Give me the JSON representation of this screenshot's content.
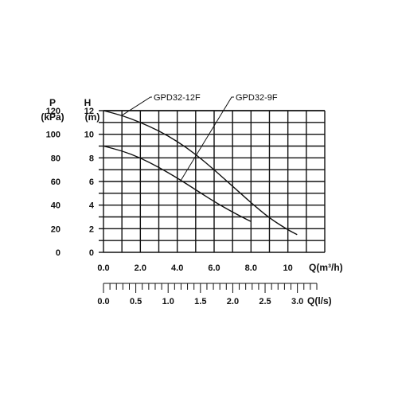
{
  "chart_data": {
    "type": "line",
    "title": "",
    "left_axes": [
      {
        "label_top": "P",
        "label_unit": "(kPa)",
        "ticks": [
          0,
          20,
          40,
          60,
          80,
          100,
          120
        ]
      },
      {
        "label_top": "H",
        "label_unit": "(m)",
        "ticks": [
          0,
          2,
          4,
          6,
          8,
          10,
          12
        ]
      }
    ],
    "xlabel": "Q(m³/h)",
    "x_ticks": [
      "0.0",
      "2.0",
      "4.0",
      "6.0",
      "8.0",
      "10"
    ],
    "xlim": [
      0,
      12
    ],
    "ylim": [
      0,
      12
    ],
    "secondary_x": {
      "label": "Q(l/s)",
      "ticks": [
        "0.0",
        "0.5",
        "1.0",
        "1.5",
        "2.0",
        "2.5",
        "3.0"
      ],
      "range": [
        0,
        3.3
      ]
    },
    "grid": true,
    "series": [
      {
        "name": "GPD32-12F",
        "x": [
          0.0,
          1.0,
          2.0,
          3.0,
          4.0,
          5.0,
          6.0,
          7.0,
          8.0,
          9.0,
          10.0,
          10.5
        ],
        "y": [
          12.0,
          11.6,
          11.0,
          10.3,
          9.4,
          8.3,
          7.0,
          5.6,
          4.2,
          2.9,
          1.9,
          1.5
        ]
      },
      {
        "name": "GPD32-9F",
        "x": [
          0.0,
          1.0,
          2.0,
          3.0,
          4.0,
          5.0,
          6.0,
          7.0,
          8.0
        ],
        "y": [
          9.0,
          8.6,
          8.0,
          7.2,
          6.3,
          5.3,
          4.3,
          3.4,
          2.6
        ]
      }
    ]
  }
}
